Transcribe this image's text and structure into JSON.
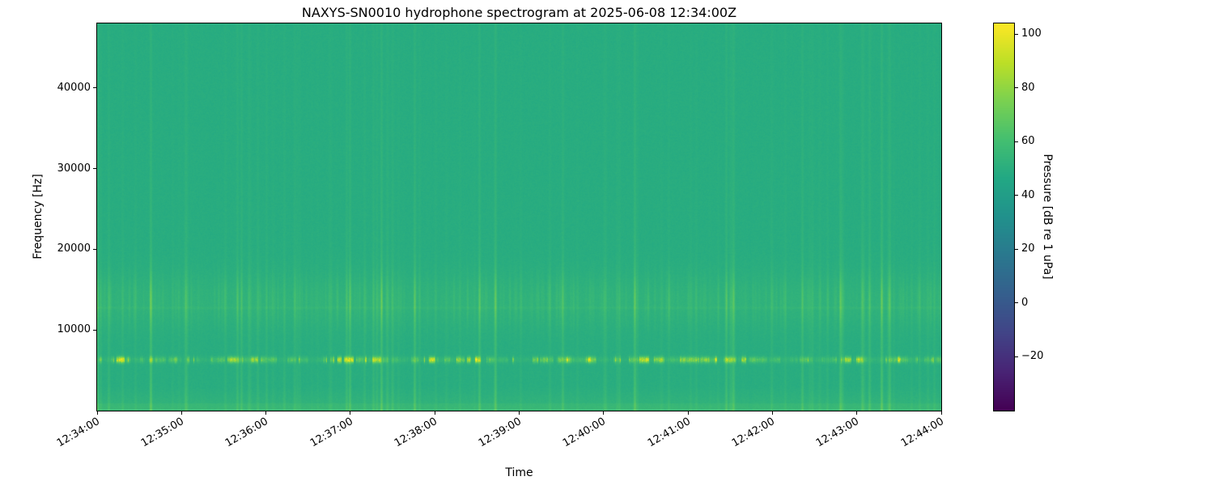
{
  "chart_data": {
    "type": "heatmap",
    "title": "NAXYS-SN0010 hydrophone spectrogram at 2025-06-08 12:34:00Z",
    "xlabel": "Time",
    "ylabel": "Frequency [Hz]",
    "colorbar_label": "Pressure [dB re 1 uPa]",
    "colormap": "viridis",
    "x_range_seconds": [
      0,
      600
    ],
    "x_tick_seconds": [
      0,
      60,
      120,
      180,
      240,
      300,
      360,
      420,
      480,
      540,
      600
    ],
    "x_tick_labels": [
      "12:34:00",
      "12:35:00",
      "12:36:00",
      "12:37:00",
      "12:38:00",
      "12:39:00",
      "12:40:00",
      "12:41:00",
      "12:42:00",
      "12:43:00",
      "12:44:00"
    ],
    "y_range_hz": [
      0,
      48000
    ],
    "y_ticks_hz": [
      10000,
      20000,
      30000,
      40000
    ],
    "y_tick_labels": [
      "10000",
      "20000",
      "30000",
      "40000"
    ],
    "color_scale": {
      "vmin": -40,
      "vmax": 104,
      "ticks": [
        100,
        80,
        60,
        40,
        20,
        0,
        -20
      ],
      "tick_labels": [
        "100",
        "80",
        "60",
        "40",
        "20",
        "0",
        "−20"
      ]
    },
    "content": {
      "background_db": 49,
      "tonal_line_hz": 6300,
      "thin_line_hz": 12750,
      "broad_band_center_hz": 13600,
      "broad_band_sigma_hz": 2300,
      "low_band_below_hz": 3000,
      "texture": "broadband vertical transient streaks, intermittent bright tonal at ~6 kHz",
      "seed": 7
    }
  }
}
